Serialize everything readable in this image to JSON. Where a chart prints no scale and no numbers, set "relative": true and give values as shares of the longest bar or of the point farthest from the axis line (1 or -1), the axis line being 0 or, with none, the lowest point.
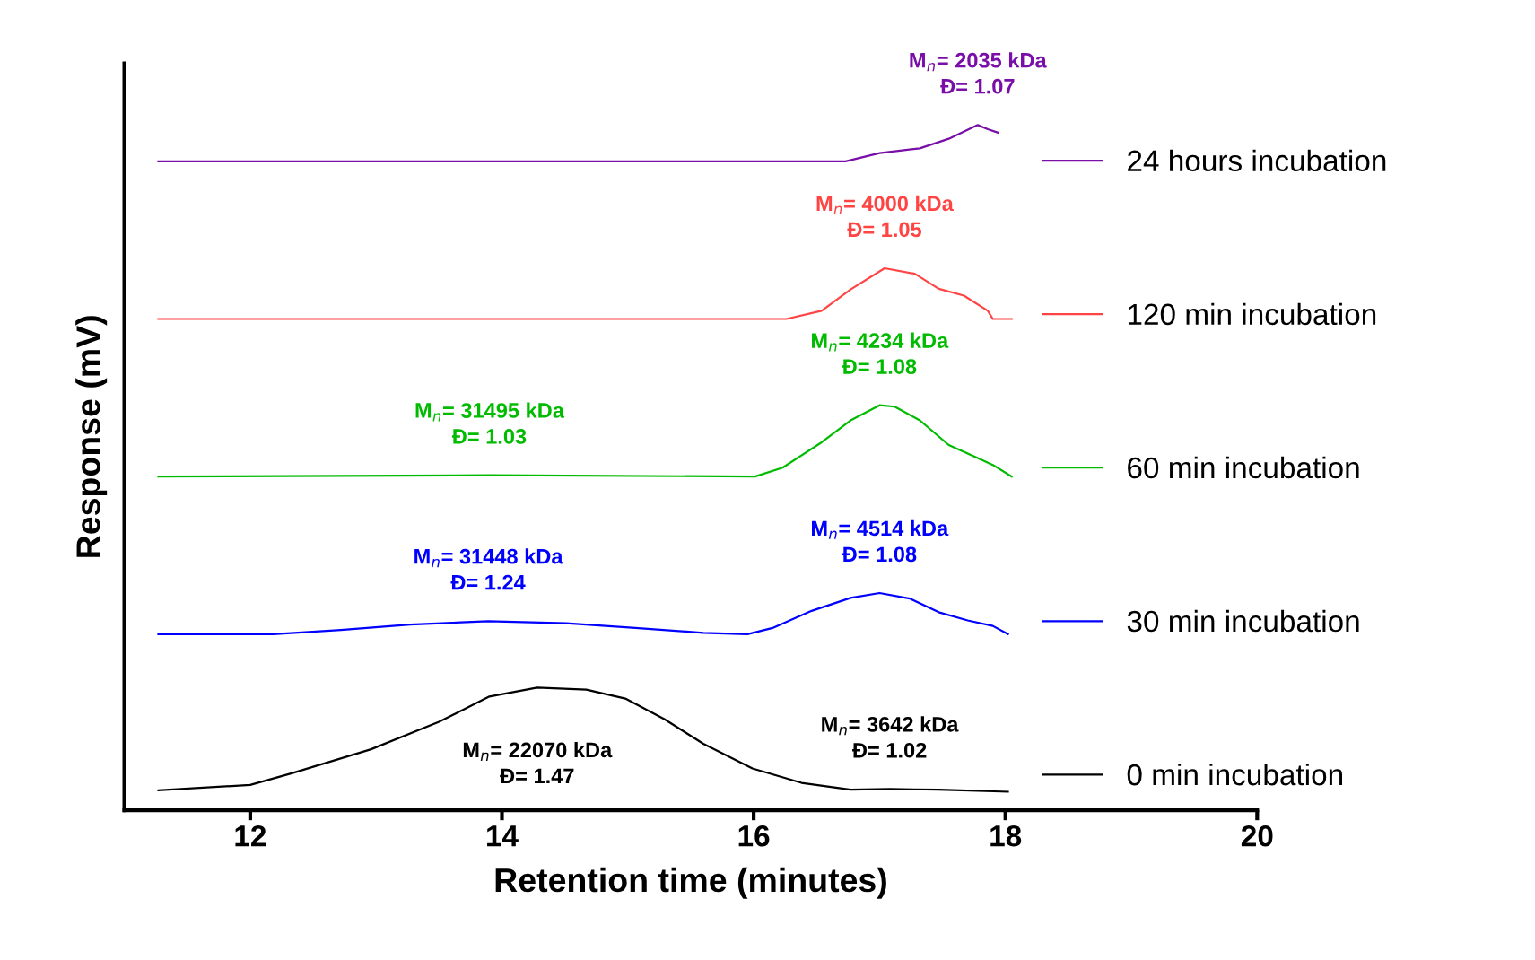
{
  "chart_data": {
    "type": "line",
    "relative": true,
    "xlabel": "Retention time (minutes)",
    "ylabel": "Response (mV)",
    "xlim": [
      11,
      20
    ],
    "xticks": [
      12,
      14,
      16,
      18,
      20
    ],
    "grid": false,
    "legend": "right",
    "marker": "none",
    "line_style": "solid",
    "series": [
      {
        "name": "0 min incubation",
        "color": "#000000",
        "x": [
          11.27,
          12,
          12.33,
          12.96,
          13.5,
          13.9,
          14.28,
          14.67,
          14.98,
          15.29,
          15.6,
          15.99,
          16.38,
          16.77,
          17.08,
          17.47,
          18.02
        ],
        "values": [
          0.029,
          0.037,
          0.054,
          0.089,
          0.129,
          0.166,
          0.179,
          0.176,
          0.163,
          0.133,
          0.097,
          0.061,
          0.04,
          0.03,
          0.031,
          0.03,
          0.027
        ]
      },
      {
        "name": "30 min incubation",
        "color": "#0000ff",
        "x": [
          11.27,
          12.18,
          12.72,
          13.27,
          13.89,
          14.51,
          15.06,
          15.6,
          15.95,
          16.15,
          16.46,
          16.77,
          17.0,
          17.24,
          17.47,
          17.7,
          17.9,
          18.02
        ],
        "values": [
          0.257,
          0.257,
          0.263,
          0.271,
          0.276,
          0.273,
          0.266,
          0.259,
          0.257,
          0.266,
          0.291,
          0.31,
          0.317,
          0.309,
          0.289,
          0.277,
          0.269,
          0.257
        ]
      },
      {
        "name": "60 min incubation",
        "color": "#00bb00",
        "x": [
          11.27,
          13.9,
          16.01,
          16.23,
          16.54,
          16.77,
          17.0,
          17.12,
          17.32,
          17.55,
          17.78,
          17.9,
          18.05
        ],
        "values": [
          0.487,
          0.489,
          0.487,
          0.5,
          0.537,
          0.569,
          0.591,
          0.589,
          0.569,
          0.533,
          0.514,
          0.504,
          0.487
        ]
      },
      {
        "name": "120 min incubation",
        "color": "#ff4444",
        "x": [
          11.27,
          16.26,
          16.54,
          16.77,
          17.04,
          17.28,
          17.47,
          17.67,
          17.86,
          17.9,
          18.05
        ],
        "values": [
          0.717,
          0.717,
          0.729,
          0.76,
          0.791,
          0.783,
          0.761,
          0.751,
          0.729,
          0.717,
          0.717
        ]
      },
      {
        "name": "24 hours incubation",
        "color": "#7a0ea8",
        "x": [
          11.27,
          16.73,
          17.0,
          17.32,
          17.55,
          17.78,
          17.86,
          17.94
        ],
        "values": [
          0.947,
          0.947,
          0.959,
          0.966,
          0.98,
          1.0,
          0.994,
          0.989
        ]
      }
    ],
    "annotations": [
      {
        "text": "M$_{n}$= 2035 kDa\nĐ= 1.07",
        "x": 17.78,
        "y": 1.0
      },
      {
        "text": "M$_{n}$= 4000 kDa\nĐ= 1.05",
        "x": 17.04,
        "y": 0.791
      },
      {
        "text": "M$_{n}$= 4234 kDa\nĐ= 1.08",
        "x": 17.0,
        "y": 0.591
      },
      {
        "text": "M$_{n}$= 31495 kDa\nĐ= 1.03",
        "x": 13.9,
        "y": 0.489
      },
      {
        "text": "M$_{n}$= 4514 kDa\nĐ= 1.08",
        "x": 17.0,
        "y": 0.317
      },
      {
        "text": "M$_{n}$= 31448 kDa\nĐ= 1.24",
        "x": 13.89,
        "y": 0.276
      },
      {
        "text": "M$_{n}$= 22070 kDa\nĐ= 1.47",
        "x": 14.28,
        "y": 0.179
      },
      {
        "text": "M$_{n}$= 3642 kDa\nĐ= 1.02",
        "x": 17.08,
        "y": 0.031
      }
    ]
  }
}
